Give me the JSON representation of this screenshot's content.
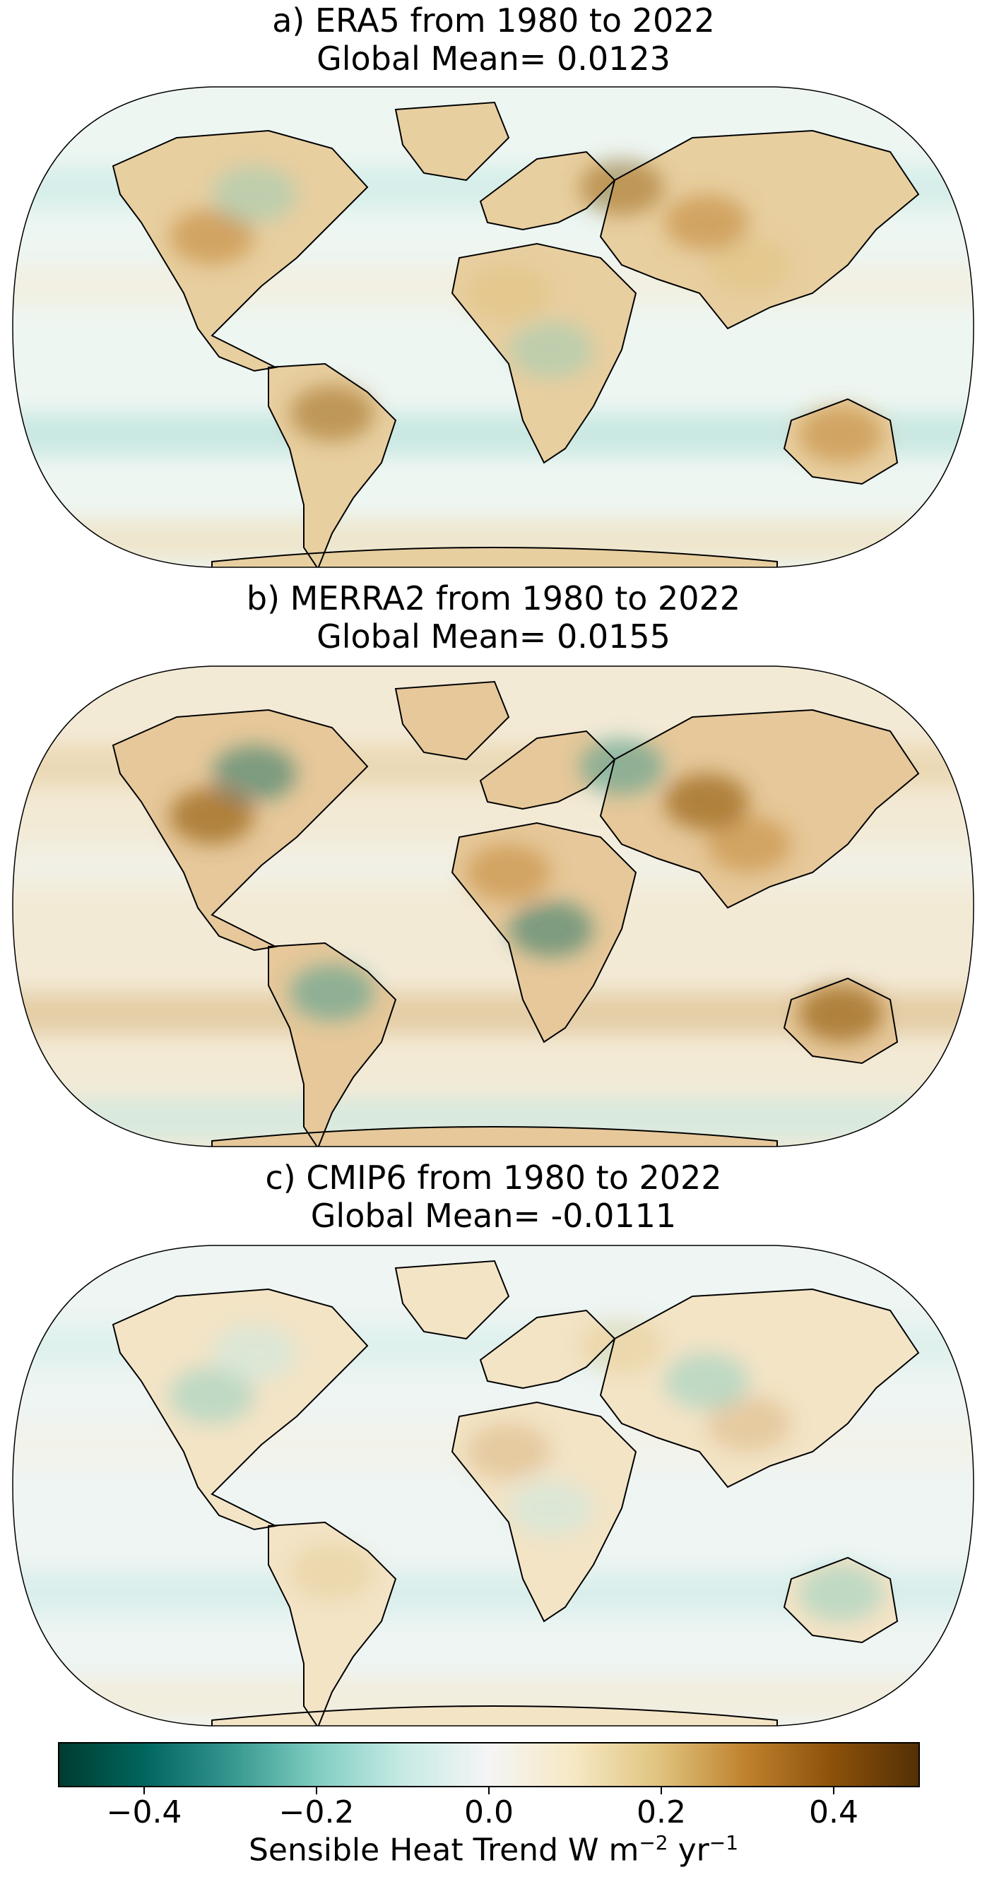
{
  "panels": [
    {
      "title": "a) ERA5 from 1980 to 2022",
      "subtitle": "Global Mean= 0.0123",
      "theme": "brown"
    },
    {
      "title": "b) MERRA2 from 1980 to 2022",
      "subtitle": "Global Mean= 0.0155",
      "theme": "mixed"
    },
    {
      "title": "c) CMIP6 from 1980 to 2022",
      "subtitle": "Global Mean= -0.0111",
      "theme": "pale"
    }
  ],
  "colorbar": {
    "ticks": [
      "−0.4",
      "−0.2",
      "0.0",
      "0.2",
      "0.4"
    ],
    "tick_values": [
      -0.4,
      -0.2,
      0.0,
      0.2,
      0.4
    ],
    "range": [
      -0.5,
      0.5
    ],
    "label_main": "Sensible Heat Trend W m",
    "label_exp1": "−2",
    "label_mid": " yr",
    "label_exp2": "−1",
    "colors": [
      "#003c30",
      "#01665e",
      "#35978f",
      "#80cdc1",
      "#c7eae5",
      "#f5f5f5",
      "#f6e8c3",
      "#dfc27d",
      "#bf812d",
      "#8c510a",
      "#543005"
    ]
  }
}
